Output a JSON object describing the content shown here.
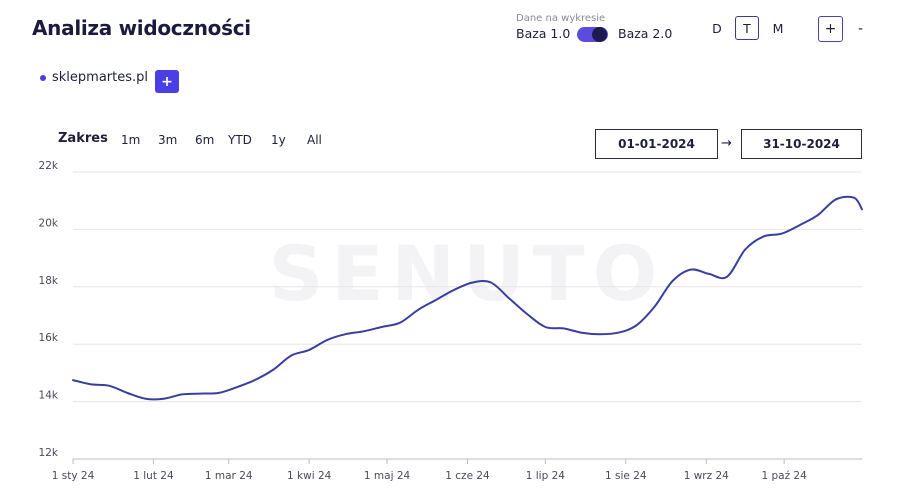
{
  "header": {
    "title": "Analiza widoczności",
    "base_caption": "Dane na wykresie",
    "base_left": "Baza 1.0",
    "base_right": "Baza 2.0",
    "granularity": [
      "D",
      "T",
      "M"
    ],
    "granularity_active": "T",
    "zoom_in": "+",
    "zoom_out": "-"
  },
  "domain": {
    "name": "sklepmartes.pl",
    "add_label": "+"
  },
  "range": {
    "label": "Zakres",
    "options": [
      "1m",
      "3m",
      "6m",
      "YTD",
      "1y",
      "All"
    ],
    "start_date": "01-01-2024",
    "arrow": "→",
    "end_date": "31-10-2024"
  },
  "colors": {
    "line": "#3a3f9e",
    "accent": "#4a3ee6",
    "toggle": "#5b4cdc"
  },
  "chart_data": {
    "type": "line",
    "title": "",
    "watermark": "SENUTO",
    "ylim": [
      12000,
      22000
    ],
    "yticks": [
      12000,
      14000,
      16000,
      18000,
      20000,
      22000
    ],
    "ytick_labels": [
      "12k",
      "14k",
      "16k",
      "18k",
      "20k",
      "22k"
    ],
    "xlim": [
      "2024-01-01",
      "2024-10-31"
    ],
    "xticks": [
      "2024-01-01",
      "2024-02-01",
      "2024-03-01",
      "2024-04-01",
      "2024-05-01",
      "2024-06-01",
      "2024-07-01",
      "2024-08-01",
      "2024-09-01",
      "2024-10-01"
    ],
    "xtick_labels": [
      "1 sty 24",
      "1 lut 24",
      "1 mar 24",
      "1 kwi 24",
      "1 maj 24",
      "1 cze 24",
      "1 lip 24",
      "1 sie 24",
      "1 wrz 24",
      "1 paź 24"
    ],
    "grid": true,
    "series": [
      {
        "x": [
          "2024-01-01",
          "2024-01-08",
          "2024-01-15",
          "2024-01-22",
          "2024-01-29",
          "2024-02-05",
          "2024-02-12",
          "2024-02-19",
          "2024-02-26",
          "2024-03-04",
          "2024-03-11",
          "2024-03-18",
          "2024-03-25",
          "2024-04-01",
          "2024-04-08",
          "2024-04-15",
          "2024-04-22",
          "2024-04-29",
          "2024-05-06",
          "2024-05-13",
          "2024-05-20",
          "2024-05-27",
          "2024-06-03",
          "2024-06-10",
          "2024-06-17",
          "2024-06-24",
          "2024-07-01",
          "2024-07-08",
          "2024-07-15",
          "2024-07-22",
          "2024-07-29",
          "2024-08-05",
          "2024-08-12",
          "2024-08-19",
          "2024-08-26",
          "2024-09-02",
          "2024-09-09",
          "2024-09-16",
          "2024-09-23",
          "2024-09-30",
          "2024-10-07",
          "2024-10-14",
          "2024-10-21",
          "2024-10-28",
          "2024-10-31"
        ],
        "values": [
          14750,
          14600,
          14550,
          14300,
          14100,
          14100,
          14250,
          14280,
          14300,
          14500,
          14750,
          15100,
          15600,
          15800,
          16150,
          16350,
          16450,
          16600,
          16750,
          17200,
          17550,
          17900,
          18150,
          18150,
          17600,
          17050,
          16600,
          16550,
          16400,
          16350,
          16400,
          16650,
          17300,
          18200,
          18600,
          18450,
          18350,
          19300,
          19750,
          19850,
          20150,
          20500,
          21050,
          21100,
          20700
        ]
      }
    ]
  }
}
